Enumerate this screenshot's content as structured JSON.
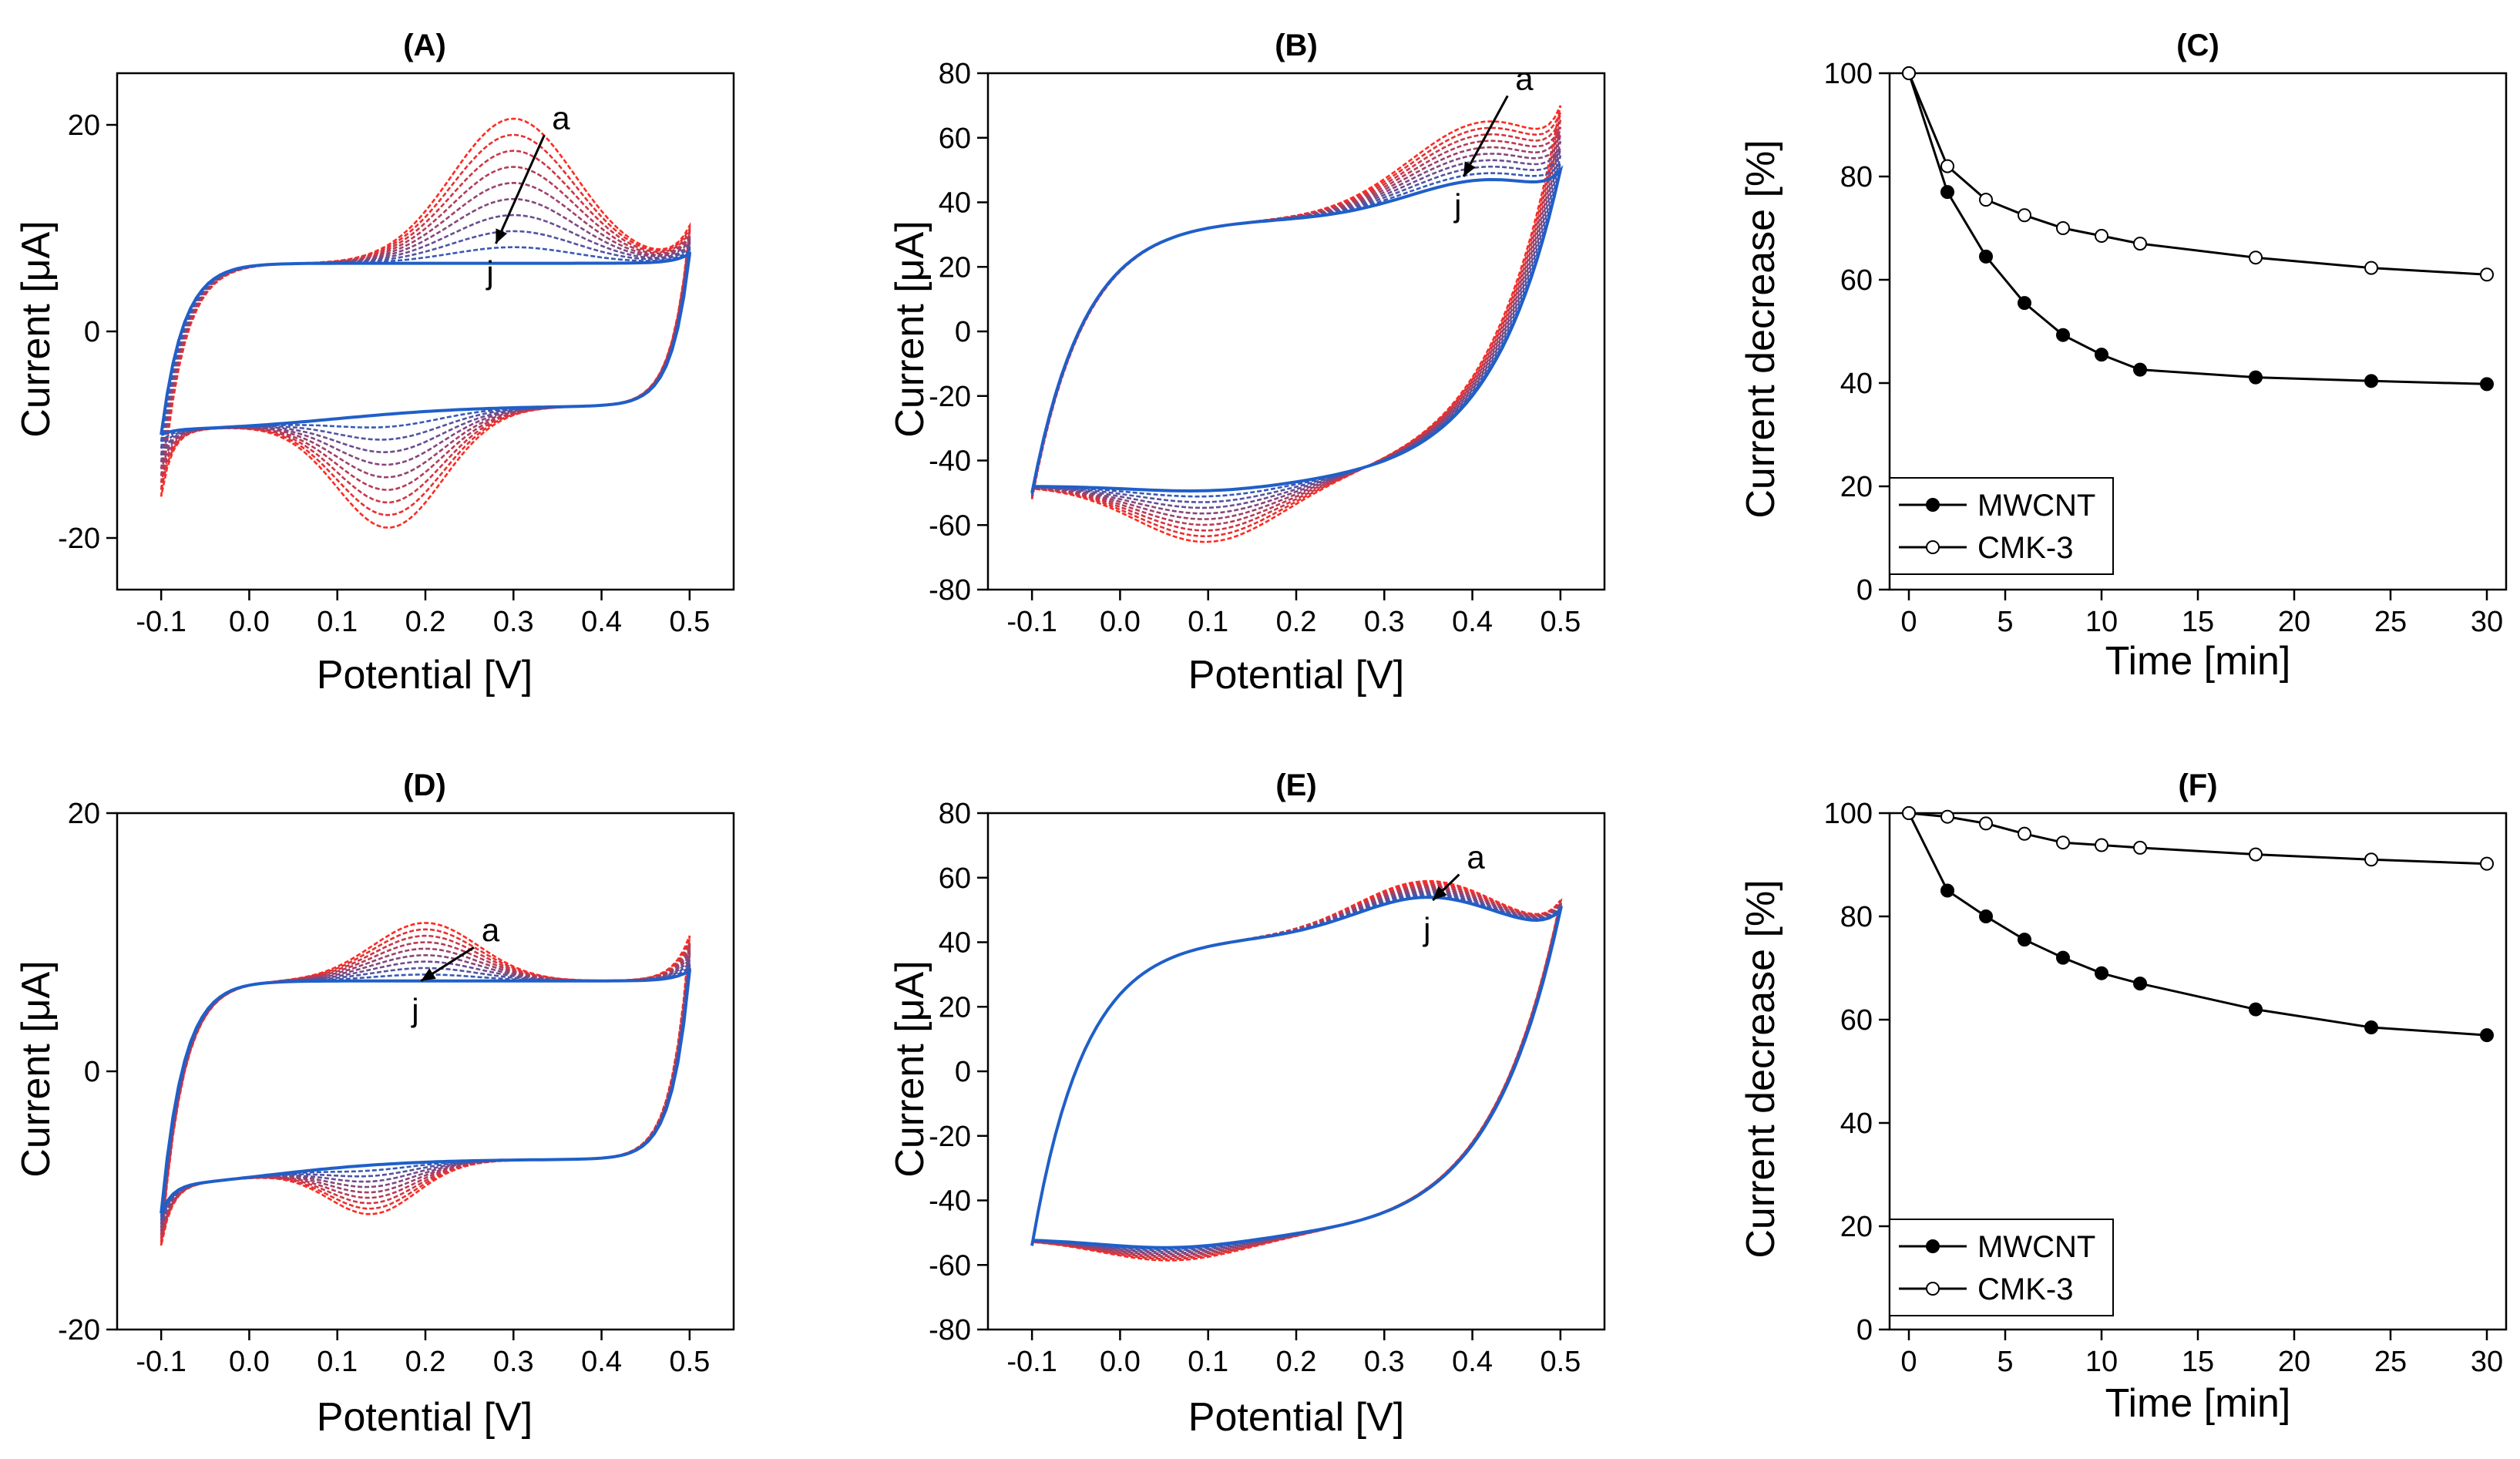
{
  "figure": {
    "panels": [
      {
        "id": "A",
        "title": "(A)",
        "type": "line",
        "xlabel": "Potential [V]",
        "ylabel": "Current [μA]",
        "xlim": [
          -0.15,
          0.55
        ],
        "ylim": [
          -25,
          25
        ],
        "xticks": [
          -0.1,
          0,
          0.1,
          0.2,
          0.3,
          0.4,
          0.5
        ],
        "xtick_labels": [
          "-0.1",
          "0.0",
          "0.1",
          "0.2",
          "0.3",
          "0.4",
          "0.5"
        ],
        "yticks": [
          -20,
          0,
          20
        ],
        "ytick_labels": [
          "-20",
          "0",
          "20"
        ],
        "cv": {
          "n_curves": 10,
          "base_anodic": 6.6,
          "base_cathodic": -7.2,
          "plateau_split": 0.1,
          "ox_peak_x": 0.3,
          "ox_peak_w": 0.07,
          "ox_peak_max": 14.0,
          "red_peak_x": 0.16,
          "red_peak_w": 0.06,
          "red_peak_max": -11.0,
          "vertex_pos": {
            "x": 0.5,
            "y_start": 7.5,
            "y_end": 10.0
          },
          "vertex_neg": {
            "x": -0.1,
            "y_start": -10.0,
            "y_end": -16.0
          }
        },
        "annotation": {
          "a_label": "a",
          "j_label": "j",
          "arrow_from": [
            0.335,
            19.0
          ],
          "arrow_to": [
            0.28,
            8.5
          ]
        }
      },
      {
        "id": "B",
        "title": "(B)",
        "type": "line",
        "xlabel": "Potential [V]",
        "ylabel": "Current [μA]",
        "xlim": [
          -0.15,
          0.55
        ],
        "ylim": [
          -80,
          80
        ],
        "xticks": [
          -0.1,
          0,
          0.1,
          0.2,
          0.3,
          0.4,
          0.5
        ],
        "xtick_labels": [
          "-0.1",
          "0.0",
          "0.1",
          "0.2",
          "0.3",
          "0.4",
          "0.5"
        ],
        "yticks": [
          -80,
          -60,
          -40,
          -20,
          0,
          20,
          40,
          60,
          80
        ],
        "ytick_labels": [
          "-80",
          "-60",
          "-40",
          "-20",
          "0",
          "20",
          "40",
          "60",
          "80"
        ],
        "cv": {
          "n_curves": 10,
          "capacitive": true,
          "plateau_anodic": 35,
          "plateau_cathodic": -48,
          "ox_peak_x": 0.42,
          "ox_peak_w": 0.09,
          "ox_peak_min": 12,
          "ox_peak_max": 30,
          "red_peak_x": 0.1,
          "red_peak_w": 0.08,
          "red_peak_min": -2,
          "red_peak_max": -18,
          "vertex_pos": {
            "x": 0.5,
            "y_start": 50,
            "y_end": 70
          },
          "vertex_neg": {
            "x": -0.1,
            "y_start": -50,
            "y_end": -52
          }
        },
        "annotation": {
          "a_label": "a",
          "j_label": "j",
          "arrow_from": [
            0.44,
            73
          ],
          "arrow_to": [
            0.39,
            48
          ]
        }
      },
      {
        "id": "C",
        "title": "(C)",
        "type": "line",
        "xlabel": "Time [min]",
        "ylabel": "Current decrease [%]",
        "xlim": [
          -1,
          31
        ],
        "ylim": [
          0,
          100
        ],
        "xticks": [
          0,
          5,
          10,
          15,
          20,
          25,
          30
        ],
        "xtick_labels": [
          "0",
          "5",
          "10",
          "15",
          "20",
          "25",
          "30"
        ],
        "yticks": [
          0,
          20,
          40,
          60,
          80,
          100
        ],
        "ytick_labels": [
          "0",
          "20",
          "40",
          "60",
          "80",
          "100"
        ],
        "x": [
          0,
          2,
          4,
          6,
          8,
          10,
          12,
          18,
          24,
          30
        ],
        "series": [
          {
            "name": "MWCNT",
            "marker": "filled",
            "values": [
              100,
              77,
              64.5,
              55.5,
              49.3,
              45.5,
              42.6,
              41.1,
              40.4,
              39.8
            ]
          },
          {
            "name": "CMK-3",
            "marker": "open",
            "values": [
              100,
              82,
              75.5,
              72.5,
              70,
              68.5,
              67,
              64.3,
              62.3,
              61
            ]
          }
        ]
      },
      {
        "id": "D",
        "title": "(D)",
        "type": "line",
        "xlabel": "Potential [V]",
        "ylabel": "Current [μA]",
        "xlim": [
          -0.15,
          0.55
        ],
        "ylim": [
          -20,
          20
        ],
        "xticks": [
          -0.1,
          0,
          0.1,
          0.2,
          0.3,
          0.4,
          0.5
        ],
        "xtick_labels": [
          "-0.1",
          "0.0",
          "0.1",
          "0.2",
          "0.3",
          "0.4",
          "0.5"
        ],
        "yticks": [
          -20,
          0,
          20
        ],
        "ytick_labels": [
          "-20",
          "0",
          "20"
        ],
        "cv": {
          "n_curves": 10,
          "base_anodic": 7.0,
          "base_cathodic": -6.8,
          "plateau_split": 0.02,
          "ox_peak_x": 0.2,
          "ox_peak_w": 0.06,
          "ox_peak_max": 4.5,
          "red_peak_x": 0.14,
          "red_peak_w": 0.05,
          "red_peak_max": -3.8,
          "vertex_pos": {
            "x": 0.5,
            "y_start": 7.8,
            "y_end": 10.5
          },
          "vertex_neg": {
            "x": -0.1,
            "y_start": -11.0,
            "y_end": -13.5
          }
        },
        "annotation": {
          "a_label": "a",
          "j_label": "j",
          "arrow_from": [
            0.255,
            9.6
          ],
          "arrow_to": [
            0.195,
            7.0
          ]
        }
      },
      {
        "id": "E",
        "title": "(E)",
        "type": "line",
        "xlabel": "Potential [V]",
        "ylabel": "Current [μA]",
        "xlim": [
          -0.15,
          0.55
        ],
        "ylim": [
          -80,
          80
        ],
        "xticks": [
          -0.1,
          0,
          0.1,
          0.2,
          0.3,
          0.4,
          0.5
        ],
        "xtick_labels": [
          "-0.1",
          "0.0",
          "0.1",
          "0.2",
          "0.3",
          "0.4",
          "0.5"
        ],
        "yticks": [
          -80,
          -60,
          -40,
          -20,
          0,
          20,
          40,
          60,
          80
        ],
        "ytick_labels": [
          "-80",
          "-60",
          "-40",
          "-20",
          "0",
          "20",
          "40",
          "60",
          "80"
        ],
        "cv": {
          "n_curves": 10,
          "capacitive": true,
          "plateau_anodic": 42,
          "plateau_cathodic": -52,
          "ox_peak_x": 0.35,
          "ox_peak_w": 0.08,
          "ox_peak_min": 12,
          "ox_peak_max": 17,
          "red_peak_x": 0.06,
          "red_peak_w": 0.08,
          "red_peak_min": -3,
          "red_peak_max": -7,
          "vertex_pos": {
            "x": 0.5,
            "y_start": 50,
            "y_end": 53
          },
          "vertex_neg": {
            "x": -0.1,
            "y_start": -54,
            "y_end": -54
          }
        },
        "annotation": {
          "a_label": "a",
          "j_label": "j",
          "arrow_from": [
            0.385,
            61
          ],
          "arrow_to": [
            0.355,
            53
          ]
        }
      },
      {
        "id": "F",
        "title": "(F)",
        "type": "line",
        "xlabel": "Time [min]",
        "ylabel": "Current decrease [%]",
        "xlim": [
          -1,
          31
        ],
        "ylim": [
          0,
          100
        ],
        "xticks": [
          0,
          5,
          10,
          15,
          20,
          25,
          30
        ],
        "xtick_labels": [
          "0",
          "5",
          "10",
          "15",
          "20",
          "25",
          "30"
        ],
        "yticks": [
          0,
          20,
          40,
          60,
          80,
          100
        ],
        "ytick_labels": [
          "0",
          "20",
          "40",
          "60",
          "80",
          "100"
        ],
        "x": [
          0,
          2,
          4,
          6,
          8,
          10,
          12,
          18,
          24,
          30
        ],
        "series": [
          {
            "name": "MWCNT",
            "marker": "filled",
            "values": [
              100,
              85,
              80,
              75.5,
              72,
              69,
              67,
              62,
              58.5,
              57
            ]
          },
          {
            "name": "CMK-3",
            "marker": "open",
            "values": [
              100,
              99.3,
              98,
              96,
              94.3,
              93.8,
              93.3,
              92,
              91,
              90.2
            ]
          }
        ]
      }
    ]
  },
  "colors": {
    "first_curve": "#ff2a1f",
    "last_curve": "#1f5fc8",
    "axis": "#000000",
    "marker_open_fill": "#ffffff"
  }
}
